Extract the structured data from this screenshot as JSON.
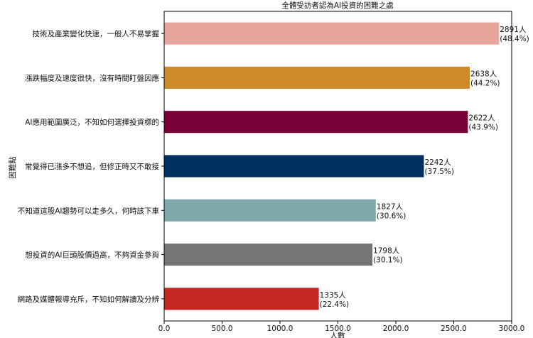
{
  "chart_data": {
    "type": "bar",
    "orientation": "horizontal",
    "title": "全體受訪者認為AI投資的困難之處",
    "xlabel": "人數",
    "ylabel": "困難點",
    "xlim": [
      0,
      3000
    ],
    "xticks": [
      "0.0",
      "500.0",
      "1000.0",
      "1500.0",
      "2000.0",
      "2500.0",
      "3000.0"
    ],
    "grid": false,
    "categories": [
      "技術及產業變化快速，一般人不易掌握",
      "漲跌幅度及速度很快，沒有時間盯盤因應",
      "AI應用範圍廣泛，不知如何選擇投資標的",
      "常覺得已漲多不想追，但修正時又不敢接",
      "不知道這股AI趨勢可以走多久，何時該下車",
      "想投資的AI巨頭股價過高，不夠資金參與",
      "網路及媒體報導充斥，不知如何解讀及分辨"
    ],
    "values": [
      2891,
      2638,
      2622,
      2242,
      1827,
      1798,
      1335
    ],
    "value_labels": [
      "2891人",
      "2638人",
      "2622人",
      "2242人",
      "1827人",
      "1798人",
      "1335人"
    ],
    "percent_labels": [
      "(48.4%)",
      "(44.2%)",
      "(43.9%)",
      "(37.5%)",
      "(30.6%)",
      "(30.1%)",
      "(22.4%)"
    ],
    "colors": [
      "#E8A59C",
      "#CC8A28",
      "#790037",
      "#00305F",
      "#7FA8AD",
      "#757575",
      "#C62721"
    ]
  }
}
